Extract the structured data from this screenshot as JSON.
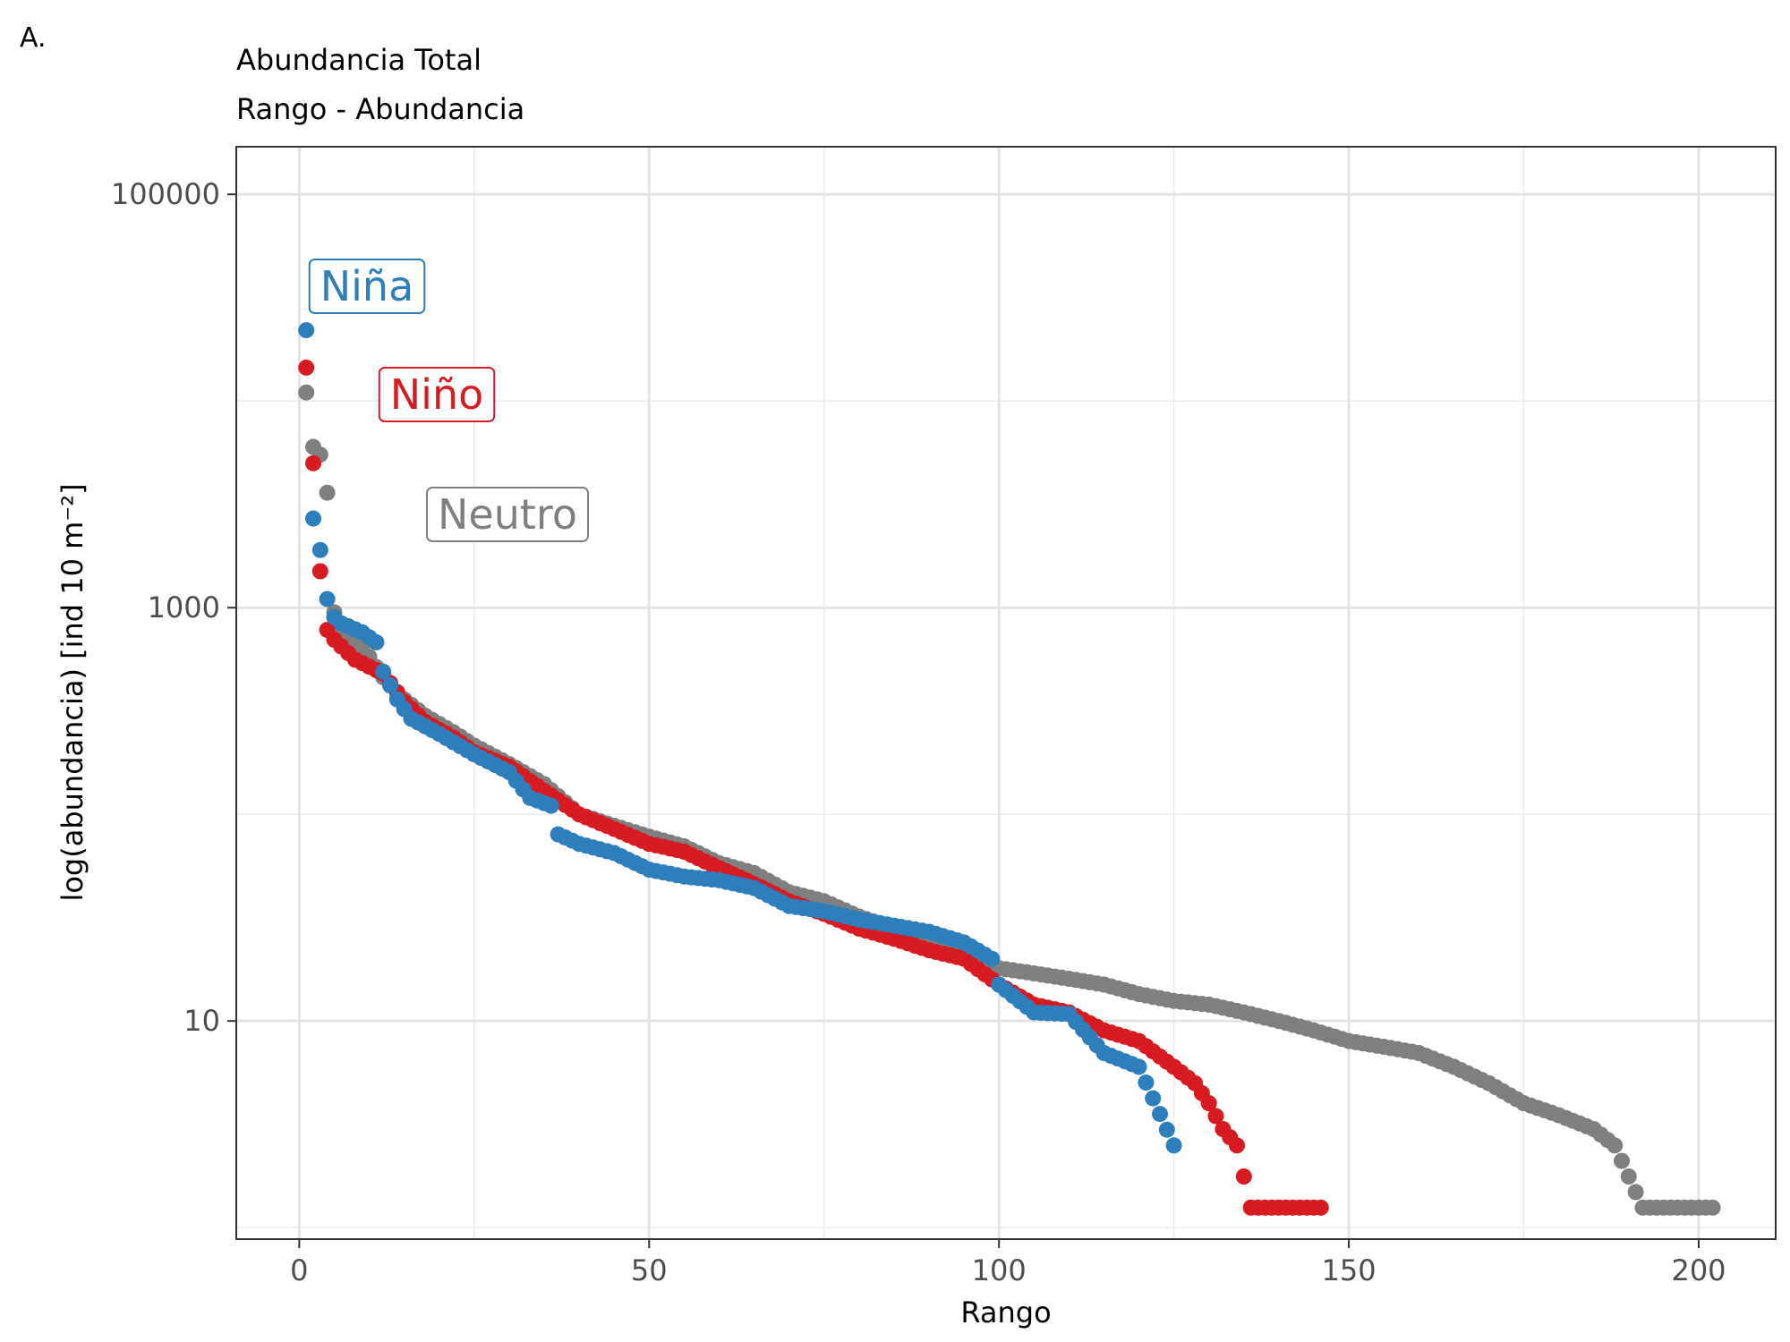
{
  "panel_tag": "A.",
  "chart_data": {
    "type": "scatter",
    "title": "Abundancia Total",
    "subtitle": "Rango - Abundancia",
    "xlabel": "Rango",
    "ylabel": "log(abundancia) [ind 10 m⁻²]",
    "xlim": [
      -9,
      211
    ],
    "ylim": [
      0.88,
      170000
    ],
    "y_scale": "log10",
    "x_ticks": [
      0,
      50,
      100,
      150,
      200
    ],
    "y_ticks": [
      10,
      1000,
      100000
    ],
    "y_tick_labels": [
      "10",
      "1000",
      "100000"
    ],
    "grid": true,
    "legend": "none",
    "labels": [
      {
        "text": "Niña",
        "series": "Niña"
      },
      {
        "text": "Niño",
        "series": "Niño"
      },
      {
        "text": "Neutro",
        "series": "Neutro"
      }
    ],
    "series": [
      {
        "name": "Niña",
        "color": "#2e7ebc",
        "breakpoints": [
          [
            1,
            22000
          ],
          [
            2,
            2700
          ],
          [
            3,
            1900
          ],
          [
            4,
            1100
          ],
          [
            5,
            900
          ],
          [
            6,
            840
          ],
          [
            9,
            760
          ],
          [
            11,
            680
          ],
          [
            12,
            490
          ],
          [
            14,
            360
          ],
          [
            16,
            290
          ],
          [
            20,
            245
          ],
          [
            25,
            195
          ],
          [
            30,
            160
          ],
          [
            33,
            120
          ],
          [
            36,
            110
          ],
          [
            37,
            80
          ],
          [
            40,
            72
          ],
          [
            45,
            65
          ],
          [
            50,
            54
          ],
          [
            55,
            50
          ],
          [
            60,
            48
          ],
          [
            65,
            44
          ],
          [
            70,
            36
          ],
          [
            75,
            34
          ],
          [
            80,
            31
          ],
          [
            90,
            27
          ],
          [
            95,
            24
          ],
          [
            99,
            20
          ],
          [
            100,
            15
          ],
          [
            105,
            11
          ],
          [
            110,
            10.8
          ],
          [
            115,
            7
          ],
          [
            120,
            6
          ],
          [
            125,
            2.5
          ]
        ]
      },
      {
        "name": "Niño",
        "color": "#d71b22",
        "breakpoints": [
          [
            1,
            14500
          ],
          [
            2,
            5000
          ],
          [
            3,
            1500
          ],
          [
            4,
            780
          ],
          [
            5,
            700
          ],
          [
            8,
            560
          ],
          [
            12,
            480
          ],
          [
            15,
            350
          ],
          [
            18,
            280
          ],
          [
            22,
            235
          ],
          [
            25,
            200
          ],
          [
            30,
            170
          ],
          [
            35,
            130
          ],
          [
            40,
            100
          ],
          [
            45,
            85
          ],
          [
            50,
            72
          ],
          [
            55,
            66
          ],
          [
            60,
            55
          ],
          [
            65,
            46
          ],
          [
            70,
            38
          ],
          [
            75,
            33
          ],
          [
            80,
            28
          ],
          [
            85,
            25
          ],
          [
            90,
            22
          ],
          [
            95,
            20
          ],
          [
            100,
            15
          ],
          [
            105,
            12
          ],
          [
            110,
            11
          ],
          [
            115,
            9
          ],
          [
            120,
            8
          ],
          [
            125,
            6
          ],
          [
            128,
            5
          ],
          [
            130,
            4
          ],
          [
            132,
            3
          ],
          [
            134,
            2.5
          ],
          [
            136,
            1.25
          ],
          [
            146,
            1.25
          ]
        ]
      },
      {
        "name": "Neutro",
        "color": "#7f7f7f",
        "breakpoints": [
          [
            1,
            11000
          ],
          [
            2,
            6000
          ],
          [
            3,
            5500
          ],
          [
            4,
            3600
          ],
          [
            5,
            950
          ],
          [
            6,
            800
          ],
          [
            9,
            650
          ],
          [
            12,
            460
          ],
          [
            15,
            360
          ],
          [
            18,
            300
          ],
          [
            22,
            250
          ],
          [
            25,
            215
          ],
          [
            30,
            175
          ],
          [
            35,
            140
          ],
          [
            40,
            100
          ],
          [
            45,
            88
          ],
          [
            50,
            78
          ],
          [
            55,
            70
          ],
          [
            60,
            58
          ],
          [
            65,
            52
          ],
          [
            70,
            42
          ],
          [
            75,
            38
          ],
          [
            80,
            32
          ],
          [
            85,
            28
          ],
          [
            90,
            25
          ],
          [
            95,
            22
          ],
          [
            100,
            18
          ],
          [
            105,
            17
          ],
          [
            110,
            16
          ],
          [
            115,
            15
          ],
          [
            120,
            13.5
          ],
          [
            125,
            12.5
          ],
          [
            130,
            12
          ],
          [
            135,
            11
          ],
          [
            140,
            10
          ],
          [
            145,
            9
          ],
          [
            150,
            8
          ],
          [
            155,
            7.5
          ],
          [
            160,
            7
          ],
          [
            165,
            6
          ],
          [
            170,
            5
          ],
          [
            175,
            4
          ],
          [
            180,
            3.5
          ],
          [
            185,
            3
          ],
          [
            188,
            2.5
          ],
          [
            192,
            1.25
          ],
          [
            202,
            1.25
          ]
        ]
      }
    ]
  }
}
